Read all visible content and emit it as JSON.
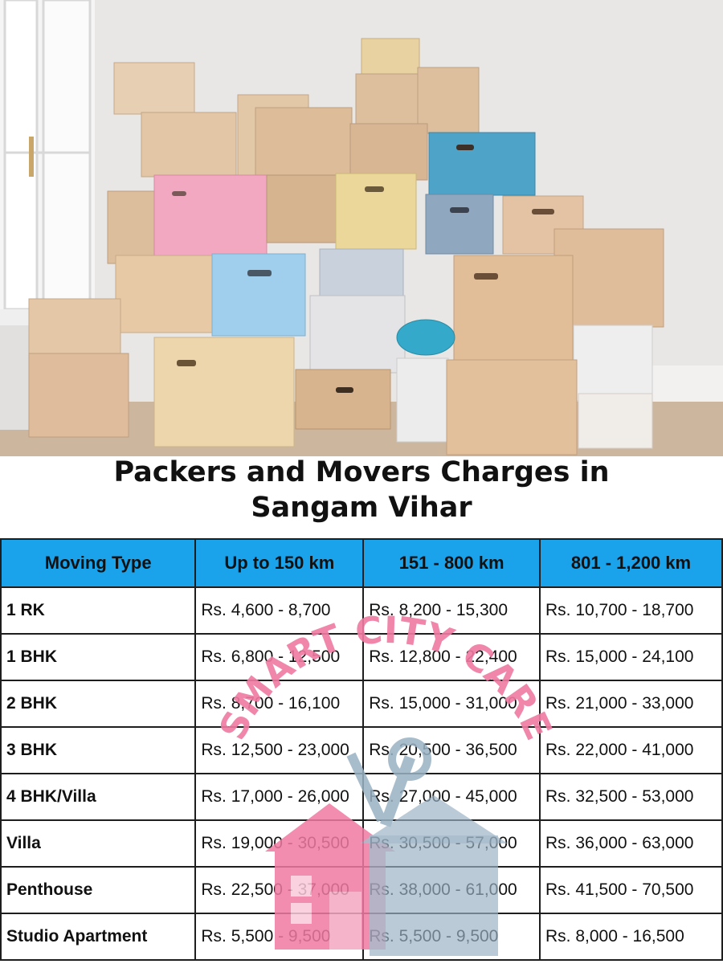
{
  "title": {
    "line1": "Packers and Movers Charges in",
    "line2": "Sangam Vihar"
  },
  "watermark": {
    "text": "SMART CITY CARE",
    "color": "#f07aa2"
  },
  "header_color": "#1aa3eb",
  "table": {
    "headers": [
      "Moving Type",
      "Up to 150 km",
      "151 - 800 km",
      "801 - 1,200 km"
    ],
    "rows": [
      {
        "type": "1 RK",
        "c1": "Rs. 4,600 - 8,700",
        "c2": "Rs. 8,200 - 15,300",
        "c3": "Rs. 10,700 - 18,700"
      },
      {
        "type": "1 BHK",
        "c1": "Rs. 6,800 - 12,500",
        "c2": "Rs. 12,800 - 22,400",
        "c3": "Rs. 15,000 - 24,100"
      },
      {
        "type": "2 BHK",
        "c1": "Rs. 8,700 - 16,100",
        "c2": "Rs. 15,000 - 31,000",
        "c3": "Rs. 21,000 - 33,000"
      },
      {
        "type": "3 BHK",
        "c1": "Rs. 12,500 - 23,000",
        "c2": "Rs. 20,500 - 36,500",
        "c3": "Rs. 22,000 - 41,000"
      },
      {
        "type": "4 BHK/Villa",
        "c1": "Rs. 17,000 - 26,000",
        "c2": "Rs. 27,000 - 45,000",
        "c3": "Rs. 32,500 - 53,000"
      },
      {
        "type": "Villa",
        "c1": "Rs. 19,000 - 30,500",
        "c2": "Rs. 30,500 - 57,000",
        "c3": "Rs. 36,000 - 63,000"
      },
      {
        "type": "Penthouse",
        "c1": "Rs. 22,500 - 37,000",
        "c2": "Rs. 38,000 - 61,000",
        "c3": "Rs. 41,500 - 70,500"
      },
      {
        "type": "Studio Apartment",
        "c1": "Rs. 5,500 - 9,500",
        "c2": "Rs. 5,500 - 9,500",
        "c3": "Rs. 8,000 - 16,500"
      }
    ]
  }
}
